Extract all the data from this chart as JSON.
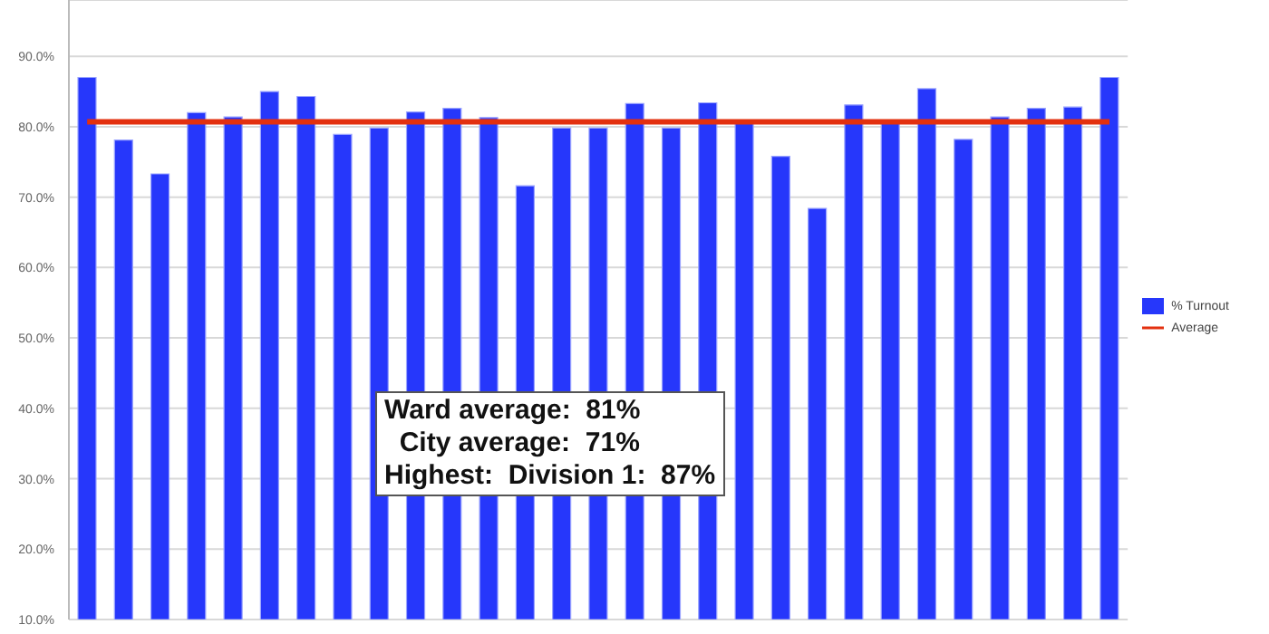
{
  "chart_data": {
    "type": "bar",
    "categories": [
      null,
      null,
      null,
      null,
      null,
      null,
      null,
      null,
      null,
      null,
      null,
      null,
      null,
      null,
      null,
      null,
      null,
      null,
      null,
      null,
      null,
      null,
      null,
      null,
      null,
      null,
      null,
      null,
      null
    ],
    "series": [
      {
        "name": "% Turnout",
        "color": "#2637fb",
        "values": [
          87.0,
          78.1,
          73.3,
          82.0,
          81.4,
          85.0,
          84.3,
          78.9,
          79.8,
          82.1,
          82.6,
          81.3,
          71.6,
          79.8,
          79.8,
          83.3,
          79.8,
          83.4,
          80.6,
          75.8,
          68.4,
          83.1,
          80.6,
          85.4,
          78.2,
          81.4,
          82.6,
          82.8,
          87.0
        ]
      },
      {
        "name": "Average",
        "type": "line",
        "color": "#e3300f",
        "values": [
          80.7,
          80.7,
          80.7,
          80.7,
          80.7,
          80.7,
          80.7,
          80.7,
          80.7,
          80.7,
          80.7,
          80.7,
          80.7,
          80.7,
          80.7,
          80.7,
          80.7,
          80.7,
          80.7,
          80.7,
          80.7,
          80.7,
          80.7,
          80.7,
          80.7,
          80.7,
          80.7,
          80.7,
          80.7
        ]
      }
    ],
    "ylim": [
      10,
      98
    ],
    "yticks": [
      {
        "value": 10,
        "label": "10.0%"
      },
      {
        "value": 20,
        "label": "20.0%"
      },
      {
        "value": 30,
        "label": "30.0%"
      },
      {
        "value": 40,
        "label": "40.0%"
      },
      {
        "value": 50,
        "label": "50.0%"
      },
      {
        "value": 60,
        "label": "60.0%"
      },
      {
        "value": 70,
        "label": "70.0%"
      },
      {
        "value": 80,
        "label": "80.0%"
      },
      {
        "value": 90,
        "label": "90.0%"
      }
    ],
    "grid": "y",
    "legend": "right",
    "marker": "none",
    "annotations": [
      "Ward average:  81%",
      "  City average:  71%",
      "Highest:  Division 1:  87%"
    ]
  }
}
